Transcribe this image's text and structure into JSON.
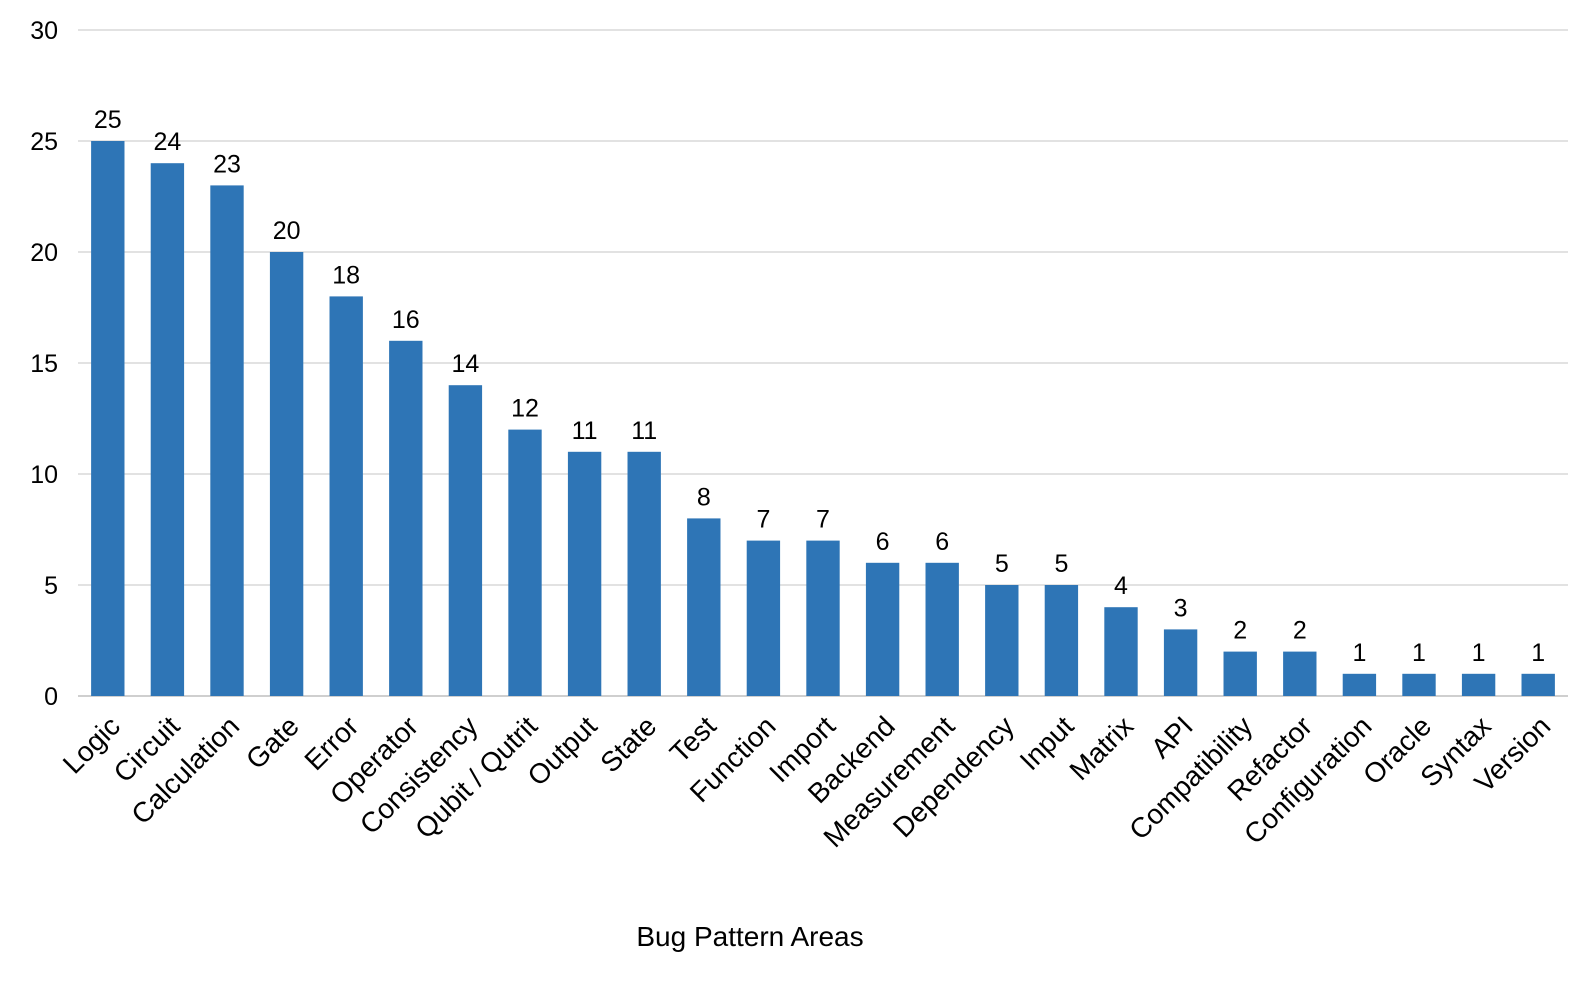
{
  "chart_data": {
    "type": "bar",
    "title": "",
    "xlabel": "Bug Pattern Areas",
    "ylabel": "",
    "ylim": [
      0,
      30
    ],
    "yticks": [
      0,
      5,
      10,
      15,
      20,
      25,
      30
    ],
    "grid": true,
    "legend": "none",
    "bar_color": "#2e75b6",
    "categories": [
      "Logic",
      "Circuit",
      "Calculation",
      "Gate",
      "Error",
      "Operator",
      "Consistency",
      "Qubit / Qutrit",
      "Output",
      "State",
      "Test",
      "Function",
      "Import",
      "Backend",
      "Measurement",
      "Dependency",
      "Input",
      "Matrix",
      "API",
      "Compatibility",
      "Refactor",
      "Configuration",
      "Oracle",
      "Syntax",
      "Version"
    ],
    "values": [
      25,
      24,
      23,
      20,
      18,
      16,
      14,
      12,
      11,
      11,
      8,
      7,
      7,
      6,
      6,
      5,
      5,
      4,
      3,
      2,
      2,
      1,
      1,
      1,
      1
    ]
  }
}
